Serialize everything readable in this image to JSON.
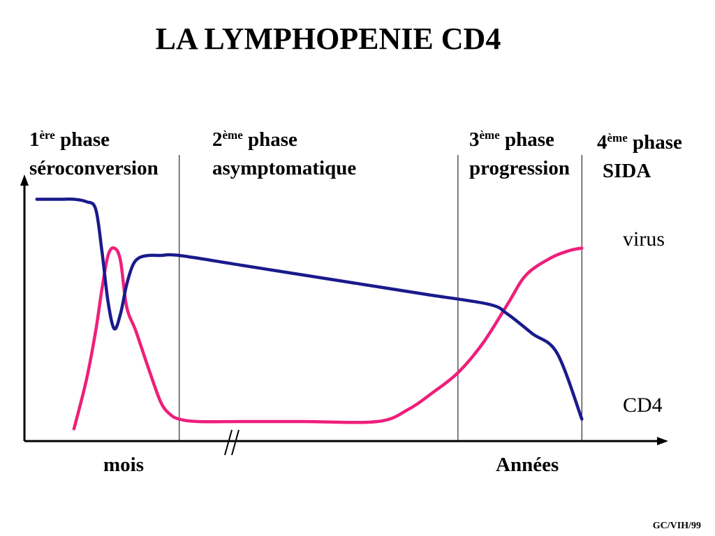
{
  "title": "LA LYMPHOPENIE CD4",
  "phases": [
    {
      "num": "1",
      "sup": "ère",
      "word": "phase",
      "name": "séroconversion"
    },
    {
      "num": "2",
      "sup": "ème",
      "word": "phase",
      "name": "asymptomatique"
    },
    {
      "num": "3",
      "sup": "ème",
      "word": "phase",
      "name": "progression"
    },
    {
      "num": "4",
      "sup": "ème",
      "word": "phase",
      "name": "SIDA"
    }
  ],
  "footer": "GC/VIH/99",
  "chart_data": {
    "type": "line",
    "title": "LA LYMPHOPENIE CD4",
    "xlabels": [
      "mois",
      "Années"
    ],
    "axis_break": "//",
    "x_range": [
      0,
      100
    ],
    "y_range": [
      0,
      100
    ],
    "grid": false,
    "legend": "inline labels at right end of each curve",
    "phase_boundaries": [
      25,
      70,
      90
    ],
    "colors": {
      "CD4": "#1a1a8c",
      "virus": "#ee1f7a"
    },
    "series": [
      {
        "name": "CD4",
        "x": [
          2,
          4,
          6,
          8,
          10,
          11.5,
          12.5,
          13.5,
          14.5,
          15.5,
          16.5,
          17.5,
          18.5,
          20,
          22,
          25,
          35,
          45,
          55,
          65,
          75,
          78,
          82,
          86,
          90
        ],
        "y": [
          99,
          99,
          99,
          99,
          98,
          95,
          78,
          57,
          46,
          52,
          64,
          72,
          75,
          76,
          76,
          76,
          72,
          68,
          64,
          60,
          56,
          52,
          44,
          36,
          9
        ]
      },
      {
        "name": "virus",
        "x": [
          8,
          10,
          11.5,
          12.5,
          13.5,
          14.5,
          15.5,
          16.5,
          18,
          20,
          22,
          23.5,
          25,
          28,
          35,
          45,
          57,
          62,
          66,
          70,
          74,
          78,
          81,
          85,
          88,
          90
        ],
        "y": [
          5,
          25,
          45,
          62,
          76,
          79,
          74,
          55,
          45,
          30,
          16,
          11,
          9,
          8,
          8,
          8,
          8,
          13,
          20,
          28,
          40,
          56,
          68,
          75,
          78,
          79
        ]
      }
    ]
  }
}
